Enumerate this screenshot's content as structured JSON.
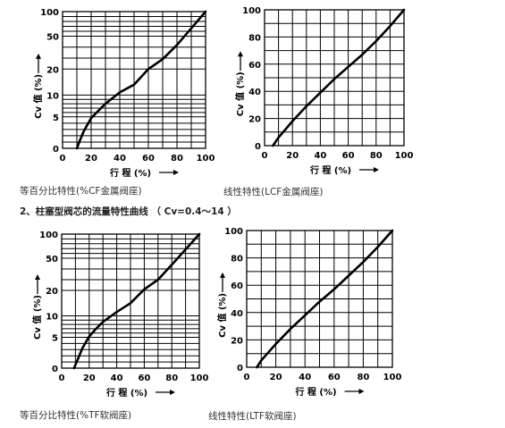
{
  "section_heading": "2、柱塞型阀芯的流量特性曲线 （ Cv=0.4～14 ）",
  "axis_labels": {
    "ylabel": "Cv 值 (%)",
    "xlabel": "行 程 (%)"
  },
  "chart_data": [
    {
      "type": "line",
      "id": "chart-top-left",
      "caption": "等百分比特性(%CF金属阀座)",
      "scale": "equal-percentage",
      "xlabel": "行 程 (%)",
      "ylabel": "Cv 值 (%)",
      "xlim": [
        0,
        100
      ],
      "ylim": [
        0,
        100
      ],
      "x_ticks": [
        0,
        20,
        40,
        60,
        80,
        100
      ],
      "y_ticks": [
        0,
        5,
        10,
        20,
        50,
        100
      ],
      "x": [
        10,
        12,
        15,
        20,
        25,
        30,
        40,
        50,
        60,
        70,
        80,
        90,
        100
      ],
      "y": [
        0,
        1.2,
        2.8,
        4.8,
        6.4,
        8.0,
        11,
        14,
        20,
        29,
        42,
        66,
        100
      ]
    },
    {
      "type": "line",
      "id": "chart-top-right",
      "caption": "线性特性(LCF金属阀座)",
      "scale": "linear",
      "xlabel": "行 程 (%)",
      "ylabel": "Cv 值 (%)",
      "xlim": [
        0,
        100
      ],
      "ylim": [
        0,
        100
      ],
      "x_ticks": [
        0,
        20,
        40,
        60,
        80,
        100
      ],
      "y_ticks": [
        0,
        20,
        40,
        60,
        80,
        100
      ],
      "x": [
        6,
        10,
        15,
        20,
        30,
        40,
        50,
        60,
        70,
        80,
        90,
        100
      ],
      "y": [
        0,
        6,
        12,
        18,
        29,
        39,
        49,
        58,
        67,
        77,
        88,
        100
      ]
    },
    {
      "type": "line",
      "id": "chart-bottom-left",
      "caption": "等百分比特性(%TF软阀座)",
      "scale": "equal-percentage",
      "xlabel": "行 程 (%)",
      "ylabel": "Cv 值 (%)",
      "xlim": [
        0,
        100
      ],
      "ylim": [
        0,
        100
      ],
      "x_ticks": [
        0,
        20,
        40,
        60,
        80,
        100
      ],
      "y_ticks": [
        0,
        5,
        10,
        20,
        50,
        100
      ],
      "x": [
        9,
        12,
        15,
        20,
        25,
        30,
        40,
        50,
        60,
        70,
        80,
        90,
        100
      ],
      "y": [
        0,
        1.6,
        3.2,
        5.2,
        7.0,
        8.6,
        11.5,
        15,
        21,
        30,
        44,
        68,
        100
      ]
    },
    {
      "type": "line",
      "id": "chart-bottom-right",
      "caption": "线性特性(LTF软阀座)",
      "scale": "linear",
      "xlabel": "行 程 (%)",
      "ylabel": "Cv 值 (%)",
      "xlim": [
        0,
        100
      ],
      "ylim": [
        0,
        100
      ],
      "x_ticks": [
        0,
        20,
        40,
        60,
        80,
        100
      ],
      "y_ticks": [
        0,
        20,
        40,
        60,
        80,
        100
      ],
      "x": [
        7,
        10,
        15,
        20,
        30,
        40,
        50,
        60,
        70,
        80,
        90,
        100
      ],
      "y": [
        0,
        5,
        11,
        17,
        28,
        38,
        48,
        57,
        67,
        77,
        88,
        100
      ]
    }
  ]
}
